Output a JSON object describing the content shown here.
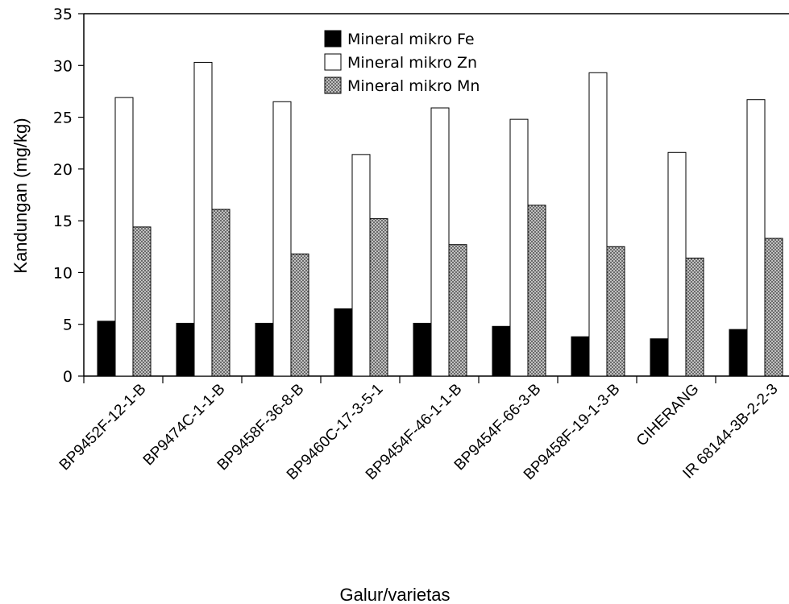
{
  "chart_data": {
    "type": "bar",
    "title": "",
    "xlabel": "Galur/varietas",
    "ylabel": "Kandungan (mg/kg)",
    "ylim": [
      0,
      35
    ],
    "yticks": [
      0,
      5,
      10,
      15,
      20,
      25,
      30,
      35
    ],
    "grid": false,
    "legend_position": "top-center",
    "categories": [
      "BP9452F-12-1-B",
      "BP9474C-1-1-B",
      "BP9458F-36-8-B",
      "BP9460C-17-3-5-1",
      "BP9454F-46-1-1-B",
      "BP9454F-66-3-B",
      "BP9458F-19-1-3-B",
      "CIHERANG",
      "IR 68144-3B-2-2-3"
    ],
    "series": [
      {
        "name": "Mineral mikro Fe",
        "fill": "solid",
        "color": "#000000",
        "values": [
          5.3,
          5.1,
          5.1,
          6.5,
          5.1,
          4.8,
          3.8,
          3.6,
          4.5
        ]
      },
      {
        "name": "Mineral mikro Zn",
        "fill": "white",
        "color": "#ffffff",
        "values": [
          26.9,
          30.3,
          26.5,
          21.4,
          25.9,
          24.8,
          29.3,
          21.6,
          26.7
        ]
      },
      {
        "name": "Mineral mikro Mn",
        "fill": "crosshatch",
        "color": "#b0b0b0",
        "values": [
          14.4,
          16.1,
          11.8,
          15.2,
          12.7,
          16.5,
          12.5,
          11.4,
          13.3
        ]
      }
    ]
  }
}
